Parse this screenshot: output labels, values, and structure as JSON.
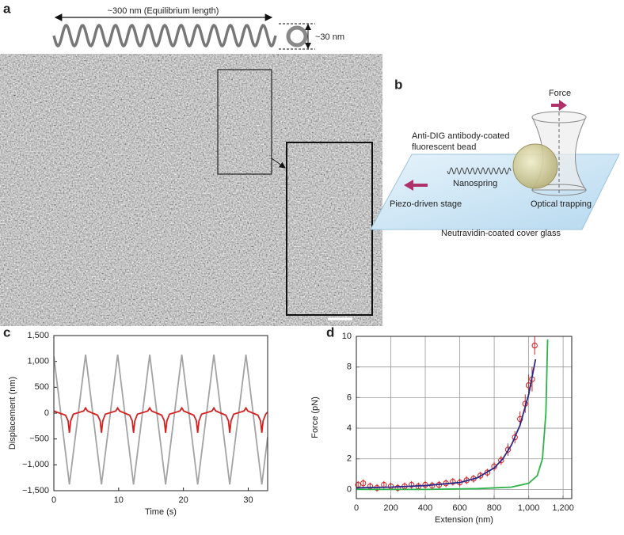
{
  "panel_labels": [
    "a",
    "b",
    "c",
    "d"
  ],
  "panel_a": {
    "length_label": "~300 nm (Equilibrium length)",
    "diameter_label": "~30 nm"
  },
  "panel_b": {
    "force": "Force",
    "bead_label": [
      "Anti-DIG antibody-coated",
      "fluorescent bead"
    ],
    "nanospring": "Nanospring",
    "stage": "Piezo-driven stage",
    "trap": "Optical trapping",
    "glass": "Neutravidin-coated cover glass"
  },
  "chart_data": [
    {
      "type": "line",
      "xlabel": "Time (s)",
      "ylabel": "Displacement (nm)",
      "xlim": [
        0,
        33
      ],
      "xticks": [
        0,
        10,
        20,
        30
      ],
      "ylim": [
        -1500,
        1500
      ],
      "yticks": [
        {
          "value": -1500,
          "label": "−1,500"
        },
        {
          "value": -1000,
          "label": "−1,000"
        },
        {
          "value": -500,
          "label": "−500"
        },
        0,
        500,
        {
          "value": 1000,
          "label": "1,000"
        },
        {
          "value": 1500,
          "label": "1,500"
        }
      ],
      "grid": false,
      "series": [
        {
          "color": "#a3a3a3",
          "x": [
            0,
            2.4,
            4.9,
            7.35,
            9.85,
            12.3,
            14.8,
            17.25,
            19.75,
            22.2,
            24.7,
            27.15,
            29.65,
            32.1,
            33
          ],
          "values": [
            1100,
            -1380,
            1130,
            -1380,
            1130,
            -1380,
            1130,
            -1380,
            1130,
            -1380,
            1130,
            -1380,
            1130,
            -1380,
            -460
          ]
        },
        {
          "color": "#d42020",
          "x": [
            0,
            1.8,
            2.2,
            2.4,
            2.6,
            3.0,
            4.6,
            4.9,
            5.2,
            6.75,
            7.15,
            7.35,
            7.55,
            7.95,
            9.55,
            9.85,
            10.15,
            11.7,
            12.1,
            12.3,
            12.5,
            12.9,
            14.5,
            14.8,
            15.1,
            16.65,
            17.05,
            17.25,
            17.45,
            17.85,
            19.45,
            19.75,
            20.05,
            21.6,
            22.0,
            22.2,
            22.4,
            22.8,
            24.4,
            24.7,
            25.0,
            26.55,
            26.95,
            27.15,
            27.35,
            27.75,
            29.35,
            29.65,
            29.95,
            31.5,
            31.9,
            32.1,
            32.3,
            32.7,
            33
          ],
          "values": [
            40,
            -40,
            -150,
            -380,
            -150,
            -20,
            40,
            100,
            40,
            -40,
            -150,
            -380,
            -150,
            -20,
            40,
            100,
            40,
            -40,
            -150,
            -380,
            -150,
            -20,
            40,
            100,
            40,
            -40,
            -150,
            -380,
            -150,
            -20,
            40,
            100,
            40,
            -40,
            -150,
            -380,
            -150,
            -20,
            40,
            100,
            40,
            -40,
            -150,
            -380,
            -150,
            -20,
            40,
            100,
            40,
            -40,
            -150,
            -380,
            -150,
            -20,
            20
          ]
        }
      ]
    },
    {
      "type": "line",
      "xlabel": "Extension (nm)",
      "ylabel": "Force (pN)",
      "xlim": [
        0,
        1250
      ],
      "xticks": [
        0,
        200,
        400,
        600,
        800,
        {
          "value": 1000,
          "label": "1,000"
        },
        {
          "value": 1200,
          "label": "1,200"
        }
      ],
      "ylim": [
        -0.6,
        10
      ],
      "yticks": [
        0,
        2,
        4,
        6,
        8,
        10
      ],
      "grid": true,
      "series": [
        {
          "color": "#d42020",
          "marker": "circle",
          "x": [
            10,
            40,
            80,
            120,
            160,
            200,
            240,
            280,
            320,
            360,
            400,
            440,
            480,
            520,
            560,
            600,
            640,
            680,
            720,
            760,
            800,
            840,
            880,
            920,
            950,
            980,
            1000,
            1020,
            1035
          ],
          "values": [
            0.3,
            0.4,
            0.2,
            0.1,
            0.3,
            0.2,
            0.1,
            0.2,
            0.3,
            0.2,
            0.3,
            0.25,
            0.3,
            0.4,
            0.5,
            0.45,
            0.6,
            0.7,
            0.9,
            1.1,
            1.5,
            1.9,
            2.6,
            3.4,
            4.6,
            5.6,
            6.8,
            7.2,
            9.4
          ],
          "errors": [
            0.25,
            0.25,
            0.25,
            0.25,
            0.25,
            0.25,
            0.25,
            0.25,
            0.25,
            0.25,
            0.25,
            0.25,
            0.25,
            0.25,
            0.25,
            0.25,
            0.25,
            0.25,
            0.25,
            0.25,
            0.3,
            0.3,
            0.4,
            0.4,
            0.5,
            0.6,
            0.7,
            0.8,
            0.6
          ]
        },
        {
          "color": "#2a2a8a",
          "x": [
            0,
            200,
            400,
            600,
            700,
            800,
            850,
            900,
            950,
            1000,
            1040
          ],
          "values": [
            0.1,
            0.15,
            0.25,
            0.45,
            0.75,
            1.4,
            2.0,
            2.9,
            4.2,
            6.2,
            8.5
          ]
        },
        {
          "color": "#2db34a",
          "x": [
            0,
            400,
            700,
            900,
            1000,
            1050,
            1080,
            1100,
            1110
          ],
          "values": [
            0,
            0,
            0.05,
            0.15,
            0.4,
            0.9,
            2,
            5,
            9.8
          ]
        }
      ]
    }
  ]
}
